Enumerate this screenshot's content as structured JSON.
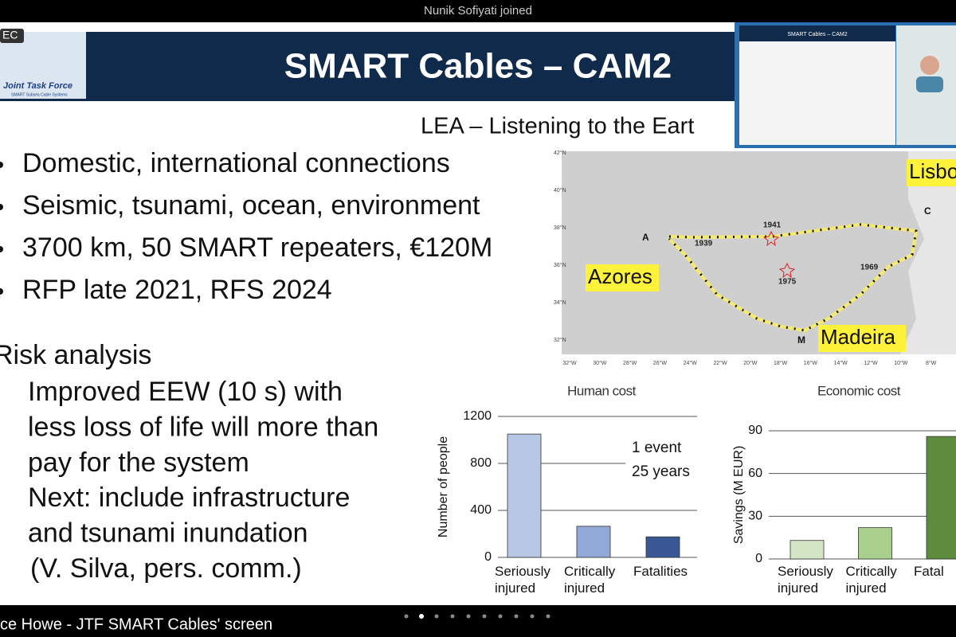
{
  "notification": "Nunik Sofiyati joined",
  "header": {
    "badge": "EC",
    "logo_text": [
      "Joint Task Force",
      "SMART Subsea Cable Systems"
    ],
    "title": "SMART Cables – CAM2"
  },
  "slide": {
    "subtitle": "LEA – Listening to the Eart",
    "bullets": [
      "Domestic, international connections",
      "Seismic, tsunami, ocean, environment",
      "3700 km, 50 SMART repeaters, €120M",
      "RFP late 2021, RFS 2024"
    ],
    "risk": {
      "heading": "Risk analysis",
      "lines": [
        "Improved EEW (10 s) with",
        "less loss of life will more than",
        "pay for the system",
        "Next: include infrastructure",
        "and tsunami inundation",
        "(V. Silva, pers. comm.)"
      ]
    }
  },
  "map": {
    "lat_labels": [
      "42°N",
      "40°N",
      "38°N",
      "36°N",
      "34°N",
      "32°N"
    ],
    "lon_labels": [
      "32°W",
      "30°W",
      "28°W",
      "26°W",
      "24°W",
      "22°W",
      "20°W",
      "18°W",
      "16°W",
      "14°W",
      "12°W",
      "10°W",
      "8°W"
    ],
    "places": [
      "Azores",
      "Madeira",
      "Lisbo"
    ],
    "points": [
      "A",
      "C",
      "M"
    ],
    "years": [
      "1939",
      "1941",
      "1975",
      "1969"
    ]
  },
  "charts": [
    {
      "type": "bar",
      "title": "Human cost",
      "ylabel": "Number of people",
      "categories": [
        "Seriously injured",
        "Critically injured",
        "Fatalities"
      ],
      "values": [
        1050,
        265,
        175
      ],
      "colors": [
        "#b6c8e6",
        "#93aad8",
        "#3b5796"
      ],
      "ylim": [
        0,
        1200
      ],
      "yticks": [
        0,
        400,
        800,
        1200
      ],
      "annotation": [
        "1 event",
        "25 years"
      ]
    },
    {
      "type": "bar",
      "title": "Economic cost",
      "ylabel": "Savings (M EUR)",
      "categories": [
        "Seriously injured",
        "Critically injured",
        "Fatal"
      ],
      "values": [
        13,
        22,
        86
      ],
      "colors": [
        "#d3e5c4",
        "#a9cf8d",
        "#5d8c3c"
      ],
      "ylim": [
        0,
        90
      ],
      "yticks": [
        0,
        30,
        60,
        90
      ]
    }
  ],
  "footer": {
    "label": "ce Howe - JTF SMART Cables' screen"
  }
}
